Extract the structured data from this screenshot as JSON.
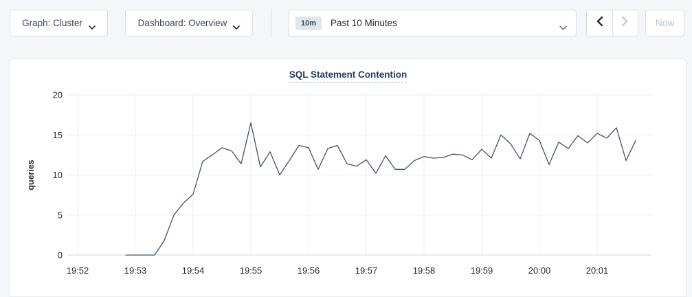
{
  "toolbar": {
    "graph_dropdown_label": "Graph: Cluster",
    "dashboard_dropdown_label": "Dashboard: Overview",
    "time_selector": {
      "badge": "10m",
      "label": "Past 10 Minutes"
    },
    "now_button_label": "Now",
    "icons": {
      "chevron_down": "v",
      "chevron_left": "<",
      "chevron_right": ">"
    }
  },
  "chart_data": {
    "type": "line",
    "title": "SQL Statement Contention",
    "ylabel": "queries",
    "ylim": [
      0,
      20
    ],
    "yticks": [
      0,
      5,
      10,
      15,
      20
    ],
    "xticks": [
      "19:52",
      "19:53",
      "19:54",
      "19:55",
      "19:56",
      "19:57",
      "19:58",
      "19:59",
      "20:00",
      "20:01"
    ],
    "grid": true,
    "legend": "none",
    "line_color": "#44506b",
    "series": [
      {
        "name": "queries",
        "points": [
          [
            "19:52:50",
            0
          ],
          [
            "19:53:00",
            0
          ],
          [
            "19:53:10",
            0
          ],
          [
            "19:53:20",
            0
          ],
          [
            "19:53:30",
            1.8
          ],
          [
            "19:53:40",
            5.0
          ],
          [
            "19:53:50",
            6.5
          ],
          [
            "19:54:00",
            7.6
          ],
          [
            "19:54:10",
            11.7
          ],
          [
            "19:54:20",
            12.5
          ],
          [
            "19:54:30",
            13.4
          ],
          [
            "19:54:40",
            13.0
          ],
          [
            "19:54:50",
            11.4
          ],
          [
            "19:55:00",
            16.5
          ],
          [
            "19:55:10",
            11.0
          ],
          [
            "19:55:20",
            12.9
          ],
          [
            "19:55:30",
            10.0
          ],
          [
            "19:55:40",
            11.8
          ],
          [
            "19:55:50",
            13.7
          ],
          [
            "19:56:00",
            13.4
          ],
          [
            "19:56:10",
            10.7
          ],
          [
            "19:56:20",
            13.3
          ],
          [
            "19:56:30",
            13.7
          ],
          [
            "19:56:40",
            11.4
          ],
          [
            "19:56:50",
            11.1
          ],
          [
            "19:57:00",
            11.9
          ],
          [
            "19:57:10",
            10.2
          ],
          [
            "19:57:20",
            12.4
          ],
          [
            "19:57:30",
            10.7
          ],
          [
            "19:57:40",
            10.7
          ],
          [
            "19:57:50",
            11.8
          ],
          [
            "19:58:00",
            12.3
          ],
          [
            "19:58:10",
            12.1
          ],
          [
            "19:58:20",
            12.2
          ],
          [
            "19:58:30",
            12.6
          ],
          [
            "19:58:40",
            12.5
          ],
          [
            "19:58:50",
            11.9
          ],
          [
            "19:59:00",
            13.2
          ],
          [
            "19:59:10",
            12.1
          ],
          [
            "19:59:20",
            15.0
          ],
          [
            "19:59:30",
            13.9
          ],
          [
            "19:59:40",
            12.0
          ],
          [
            "19:59:50",
            15.2
          ],
          [
            "20:00:00",
            14.3
          ],
          [
            "20:00:10",
            11.3
          ],
          [
            "20:00:20",
            14.1
          ],
          [
            "20:00:30",
            13.3
          ],
          [
            "20:00:40",
            14.9
          ],
          [
            "20:00:50",
            14.0
          ],
          [
            "20:01:00",
            15.2
          ],
          [
            "20:01:10",
            14.6
          ],
          [
            "20:01:20",
            15.9
          ],
          [
            "20:01:30",
            11.8
          ],
          [
            "20:01:40",
            14.3
          ]
        ]
      }
    ]
  },
  "colors": {
    "page_bg": "#f4f6f9",
    "panel_bg": "#ffffff",
    "border": "#d9dee9",
    "grid_line": "#e9ebf1",
    "axis_line": "#d2d6de",
    "series_line": "#44506b",
    "title_text": "#26395f",
    "disabled_text": "#b9c1cf"
  }
}
